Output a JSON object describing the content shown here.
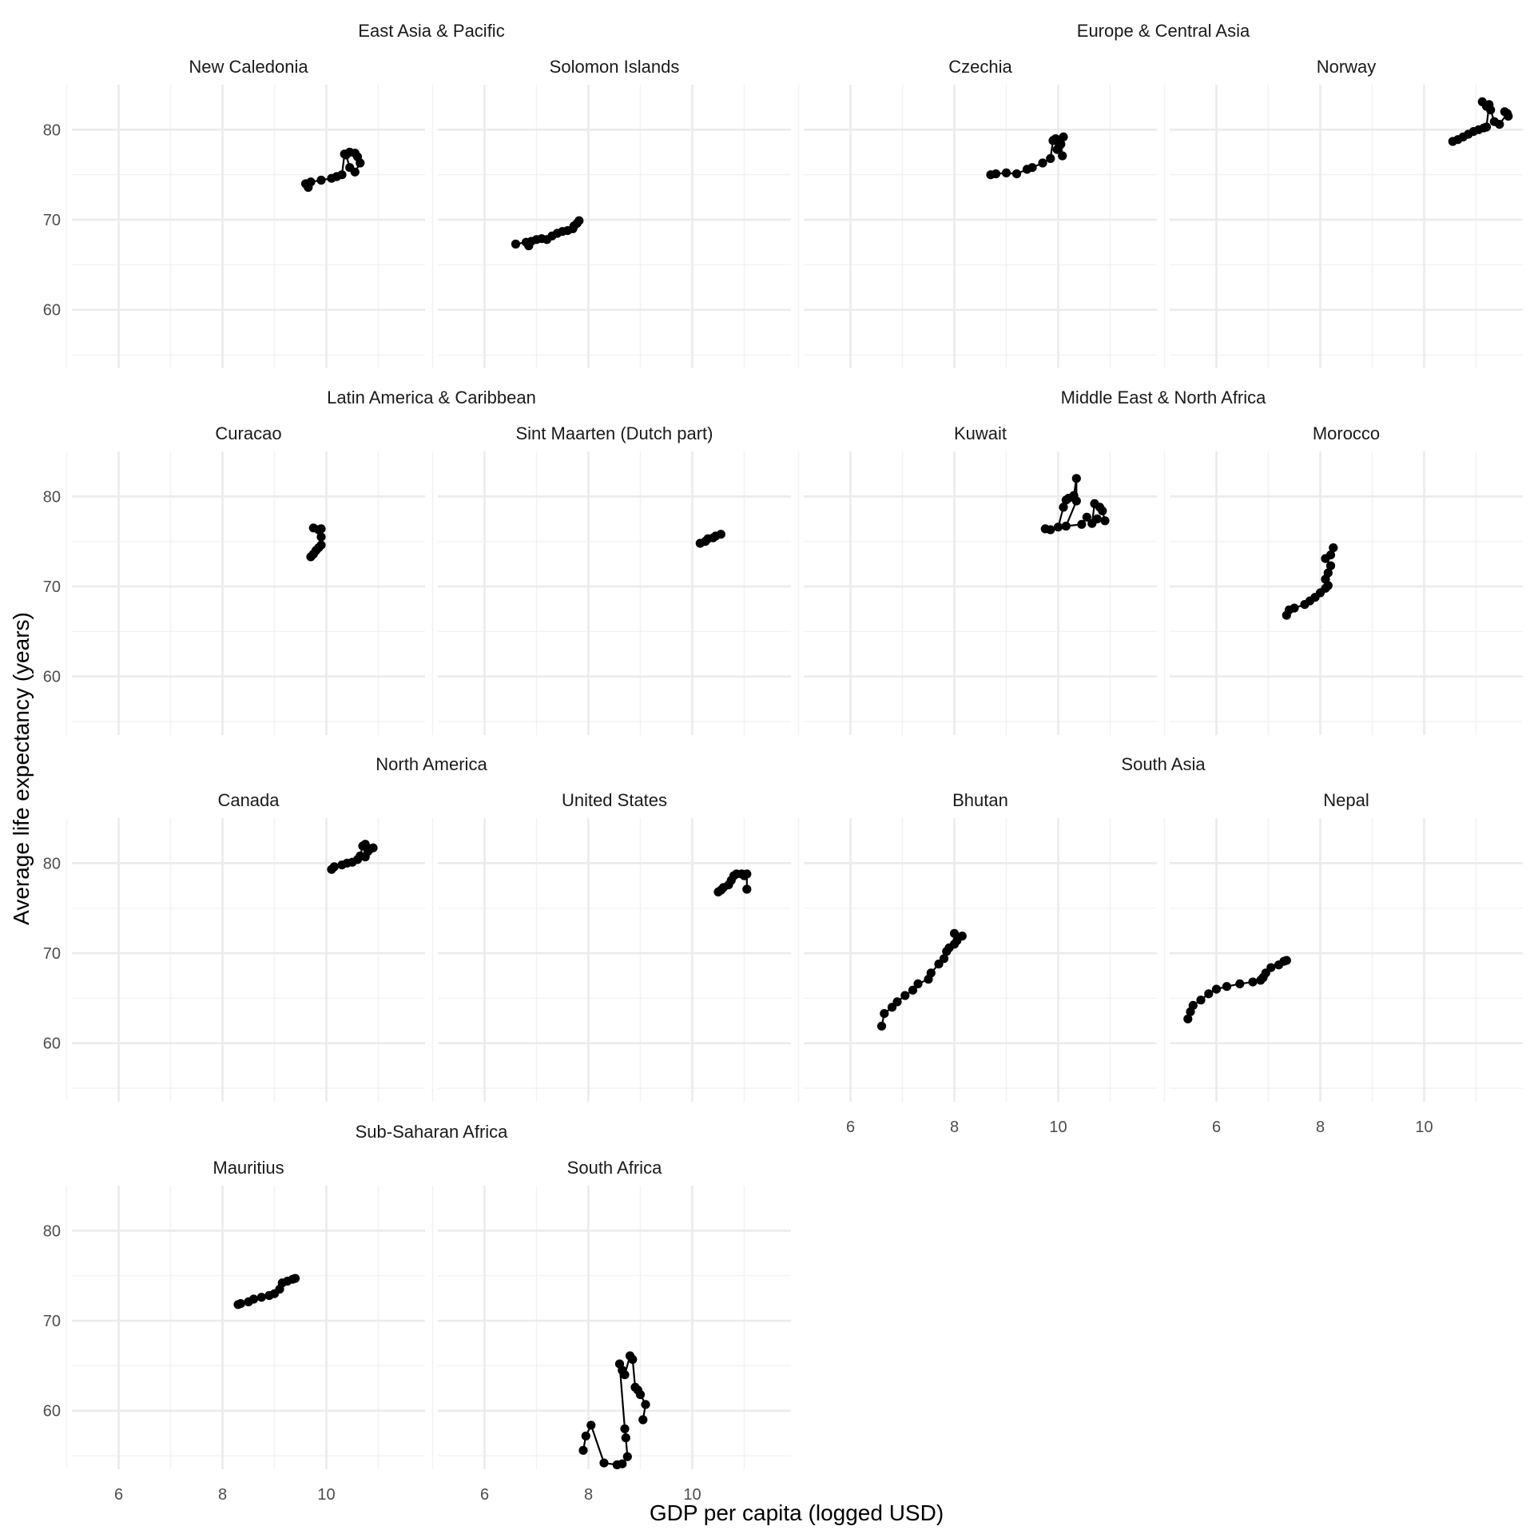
{
  "chart_data": {
    "type": "line",
    "xlabel": "GDP per capita (logged USD)",
    "ylabel": "Average life expectancy (years)",
    "xlim": [
      5.1,
      11.9
    ],
    "ylim": [
      53.5,
      85.0
    ],
    "x_ticks": [
      6,
      8,
      10
    ],
    "y_ticks": [
      60,
      70,
      80
    ],
    "grid": true,
    "point_color": "#000000",
    "regions": [
      {
        "name": "East Asia & Pacific",
        "panels": [
          {
            "country": "New Caledonia",
            "points": [
              [
                9.6,
                74.0
              ],
              [
                9.65,
                73.6
              ],
              [
                9.7,
                74.2
              ],
              [
                9.9,
                74.4
              ],
              [
                10.1,
                74.6
              ],
              [
                10.2,
                74.8
              ],
              [
                10.3,
                75.0
              ],
              [
                10.35,
                77.3
              ],
              [
                10.45,
                77.5
              ],
              [
                10.55,
                77.4
              ],
              [
                10.6,
                77.0
              ],
              [
                10.65,
                76.3
              ],
              [
                10.55,
                75.3
              ],
              [
                10.45,
                75.8
              ],
              [
                10.38,
                77.2
              ]
            ]
          },
          {
            "country": "Solomon Islands",
            "points": [
              [
                6.6,
                67.3
              ],
              [
                6.8,
                67.5
              ],
              [
                6.85,
                67.1
              ],
              [
                6.9,
                67.6
              ],
              [
                7.0,
                67.8
              ],
              [
                7.1,
                67.9
              ],
              [
                7.2,
                67.8
              ],
              [
                7.3,
                68.2
              ],
              [
                7.4,
                68.5
              ],
              [
                7.5,
                68.7
              ],
              [
                7.6,
                68.8
              ],
              [
                7.7,
                69.0
              ],
              [
                7.72,
                69.3
              ],
              [
                7.78,
                69.6
              ],
              [
                7.82,
                69.9
              ]
            ]
          }
        ]
      },
      {
        "name": "Europe & Central Asia",
        "panels": [
          {
            "country": "Czechia",
            "points": [
              [
                8.7,
                75.0
              ],
              [
                8.8,
                75.1
              ],
              [
                9.0,
                75.2
              ],
              [
                9.2,
                75.1
              ],
              [
                9.4,
                75.6
              ],
              [
                9.5,
                75.8
              ],
              [
                9.7,
                76.3
              ],
              [
                9.85,
                76.8
              ],
              [
                9.9,
                78.8
              ],
              [
                9.95,
                79.0
              ],
              [
                10.05,
                78.4
              ],
              [
                10.08,
                77.1
              ],
              [
                9.98,
                77.8
              ],
              [
                10.02,
                78.2
              ],
              [
                10.1,
                79.2
              ]
            ]
          },
          {
            "country": "Norway",
            "points": [
              [
                10.55,
                78.7
              ],
              [
                10.65,
                78.9
              ],
              [
                10.75,
                79.2
              ],
              [
                10.85,
                79.5
              ],
              [
                10.95,
                79.8
              ],
              [
                11.05,
                80.0
              ],
              [
                11.15,
                80.2
              ],
              [
                11.2,
                80.3
              ],
              [
                11.25,
                82.8
              ],
              [
                11.12,
                83.1
              ],
              [
                11.2,
                82.6
              ],
              [
                11.28,
                82.2
              ],
              [
                11.35,
                80.9
              ],
              [
                11.45,
                80.6
              ],
              [
                11.6,
                81.8
              ],
              [
                11.62,
                81.5
              ],
              [
                11.55,
                82.0
              ]
            ]
          }
        ]
      },
      {
        "name": "Latin America & Caribbean",
        "panels": [
          {
            "country": "Curacao",
            "points": [
              [
                9.7,
                73.3
              ],
              [
                9.75,
                73.6
              ],
              [
                9.8,
                74.0
              ],
              [
                9.85,
                74.3
              ],
              [
                9.9,
                74.6
              ],
              [
                9.9,
                75.5
              ],
              [
                9.85,
                76.3
              ],
              [
                9.75,
                76.5
              ],
              [
                9.9,
                76.4
              ]
            ]
          },
          {
            "country": "Sint Maarten (Dutch part)",
            "points": [
              [
                10.15,
                74.8
              ],
              [
                10.25,
                75.0
              ],
              [
                10.3,
                75.3
              ],
              [
                10.4,
                75.4
              ],
              [
                10.45,
                75.6
              ],
              [
                10.55,
                75.8
              ]
            ]
          }
        ]
      },
      {
        "name": "Middle East & North Africa",
        "panels": [
          {
            "country": "Kuwait",
            "points": [
              [
                9.75,
                76.4
              ],
              [
                9.85,
                76.3
              ],
              [
                10.0,
                76.6
              ],
              [
                10.1,
                78.8
              ],
              [
                10.15,
                79.6
              ],
              [
                10.2,
                79.8
              ],
              [
                10.3,
                80.1
              ],
              [
                10.35,
                82.0
              ],
              [
                10.35,
                79.5
              ],
              [
                10.15,
                76.7
              ],
              [
                10.45,
                76.9
              ],
              [
                10.55,
                77.7
              ],
              [
                10.65,
                77.0
              ],
              [
                10.7,
                79.2
              ],
              [
                10.8,
                78.8
              ],
              [
                10.85,
                78.4
              ],
              [
                10.9,
                77.3
              ],
              [
                10.75,
                77.5
              ]
            ]
          },
          {
            "country": "Morocco",
            "points": [
              [
                7.35,
                66.8
              ],
              [
                7.4,
                67.4
              ],
              [
                7.5,
                67.6
              ],
              [
                7.7,
                68.0
              ],
              [
                7.8,
                68.4
              ],
              [
                7.9,
                68.8
              ],
              [
                8.0,
                69.3
              ],
              [
                8.1,
                69.8
              ],
              [
                8.15,
                70.1
              ],
              [
                8.1,
                70.8
              ],
              [
                8.15,
                71.5
              ],
              [
                8.2,
                72.3
              ],
              [
                8.1,
                73.1
              ],
              [
                8.25,
                74.3
              ],
              [
                8.2,
                73.5
              ]
            ]
          }
        ]
      },
      {
        "name": "North America",
        "panels": [
          {
            "country": "Canada",
            "points": [
              [
                10.1,
                79.3
              ],
              [
                10.15,
                79.6
              ],
              [
                10.3,
                79.8
              ],
              [
                10.4,
                80.0
              ],
              [
                10.5,
                80.1
              ],
              [
                10.6,
                80.4
              ],
              [
                10.65,
                80.8
              ],
              [
                10.7,
                81.9
              ],
              [
                10.75,
                82.1
              ],
              [
                10.8,
                81.3
              ],
              [
                10.85,
                81.6
              ],
              [
                10.9,
                81.7
              ],
              [
                10.75,
                80.7
              ]
            ]
          },
          {
            "country": "United States",
            "points": [
              [
                10.5,
                76.8
              ],
              [
                10.55,
                77.0
              ],
              [
                10.6,
                77.3
              ],
              [
                10.7,
                77.6
              ],
              [
                10.75,
                78.1
              ],
              [
                10.8,
                78.6
              ],
              [
                10.85,
                78.8
              ],
              [
                10.95,
                78.8
              ],
              [
                11.0,
                78.6
              ],
              [
                11.05,
                78.8
              ],
              [
                11.05,
                77.1
              ]
            ]
          }
        ]
      },
      {
        "name": "South Asia",
        "panels": [
          {
            "country": "Bhutan",
            "points": [
              [
                6.6,
                61.9
              ],
              [
                6.65,
                63.3
              ],
              [
                6.8,
                64.0
              ],
              [
                6.9,
                64.6
              ],
              [
                7.05,
                65.3
              ],
              [
                7.2,
                65.9
              ],
              [
                7.3,
                66.6
              ],
              [
                7.5,
                67.1
              ],
              [
                7.55,
                67.8
              ],
              [
                7.7,
                68.8
              ],
              [
                7.8,
                69.4
              ],
              [
                7.85,
                70.2
              ],
              [
                7.9,
                70.6
              ],
              [
                8.0,
                71.0
              ],
              [
                8.05,
                71.4
              ],
              [
                8.0,
                72.2
              ],
              [
                8.15,
                71.9
              ]
            ]
          },
          {
            "country": "Nepal",
            "points": [
              [
                5.45,
                62.7
              ],
              [
                5.5,
                63.5
              ],
              [
                5.55,
                64.2
              ],
              [
                5.7,
                64.8
              ],
              [
                5.85,
                65.5
              ],
              [
                6.0,
                66.0
              ],
              [
                6.2,
                66.3
              ],
              [
                6.45,
                66.6
              ],
              [
                6.7,
                66.8
              ],
              [
                6.85,
                67.0
              ],
              [
                6.9,
                67.3
              ],
              [
                6.95,
                67.8
              ],
              [
                7.05,
                68.4
              ],
              [
                7.2,
                68.7
              ],
              [
                7.3,
                69.1
              ],
              [
                7.35,
                69.2
              ]
            ]
          }
        ]
      },
      {
        "name": "Sub-Saharan Africa",
        "panels": [
          {
            "country": "Mauritius",
            "points": [
              [
                8.3,
                71.8
              ],
              [
                8.35,
                71.9
              ],
              [
                8.5,
                72.1
              ],
              [
                8.6,
                72.4
              ],
              [
                8.75,
                72.6
              ],
              [
                8.9,
                72.8
              ],
              [
                9.0,
                73.0
              ],
              [
                9.1,
                73.5
              ],
              [
                9.15,
                74.2
              ],
              [
                9.25,
                74.4
              ],
              [
                9.35,
                74.6
              ],
              [
                9.4,
                74.7
              ]
            ]
          },
          {
            "country": "South Africa",
            "points": [
              [
                7.9,
                55.6
              ],
              [
                7.95,
                57.2
              ],
              [
                8.05,
                58.4
              ],
              [
                8.3,
                54.2
              ],
              [
                8.55,
                54.0
              ],
              [
                8.65,
                54.1
              ],
              [
                8.75,
                54.9
              ],
              [
                8.72,
                57.0
              ],
              [
                8.7,
                58.0
              ],
              [
                8.6,
                65.2
              ],
              [
                8.65,
                64.5
              ],
              [
                8.7,
                64.0
              ],
              [
                8.8,
                66.1
              ],
              [
                8.85,
                65.7
              ],
              [
                8.9,
                62.6
              ],
              [
                8.95,
                62.3
              ],
              [
                9.0,
                61.8
              ],
              [
                9.1,
                60.7
              ],
              [
                9.05,
                59.0
              ]
            ]
          }
        ]
      }
    ]
  }
}
